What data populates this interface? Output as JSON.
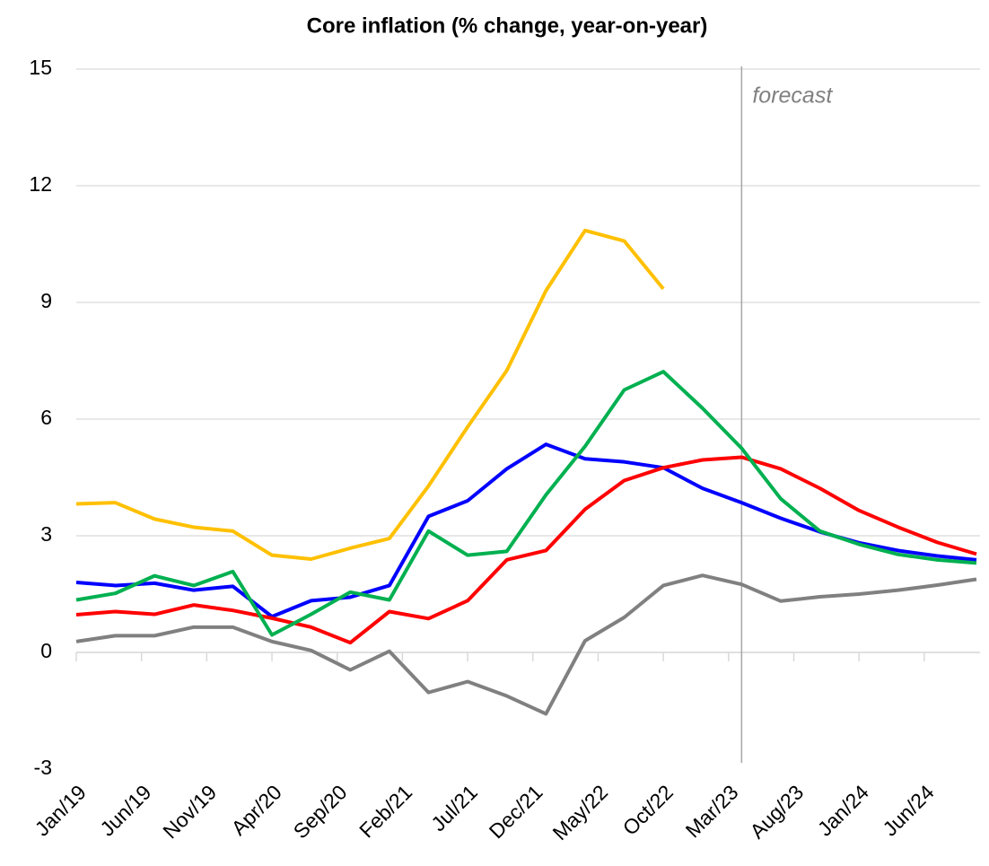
{
  "chart_data": {
    "type": "line",
    "title": "Core inflation (% change, year-on-year)",
    "x": [
      "Jan/19",
      "Apr/19",
      "Jul/19",
      "Oct/19",
      "Jan/20",
      "Apr/20",
      "Jul/20",
      "Oct/20",
      "Jan/21",
      "Apr/21",
      "Jul/21",
      "Oct/21",
      "Jan/22",
      "Apr/22",
      "Jul/22",
      "Oct/22",
      "Jan/23",
      "Apr/23",
      "Jul/23",
      "Oct/23",
      "Jan/24",
      "Apr/24",
      "Jul/24",
      "Oct/24"
    ],
    "xlim": [
      "Jan/19",
      "Oct/24"
    ],
    "xticks": [
      "Jan/19",
      "Jun/19",
      "Nov/19",
      "Apr/20",
      "Sep/20",
      "Feb/21",
      "Jul/21",
      "Dec/21",
      "May/22",
      "Oct/22",
      "Mar/23",
      "Aug/23",
      "Jan/24",
      "Jun/24"
    ],
    "ylim": [
      -3,
      15
    ],
    "yticks": [
      15,
      12,
      9,
      6,
      3,
      0,
      -3
    ],
    "grid": true,
    "annotation": {
      "text": "forecast",
      "x": "Apr/23"
    },
    "series": [
      {
        "color": "#ffc000",
        "values": [
          3.82,
          3.85,
          3.43,
          3.22,
          3.12,
          2.5,
          2.4,
          2.68,
          2.93,
          4.28,
          5.8,
          7.25,
          9.3,
          10.85,
          10.58,
          9.35,
          null,
          null,
          null,
          null,
          null,
          null,
          null,
          null
        ]
      },
      {
        "color": "#0000ff",
        "values": [
          1.8,
          1.72,
          1.78,
          1.6,
          1.7,
          0.92,
          1.33,
          1.42,
          1.72,
          3.5,
          3.9,
          4.72,
          5.35,
          4.98,
          4.9,
          4.75,
          4.22,
          3.85,
          3.45,
          3.1,
          2.82,
          2.62,
          2.48,
          2.38
        ]
      },
      {
        "color": "#ff0000",
        "values": [
          0.97,
          1.05,
          0.98,
          1.22,
          1.08,
          0.88,
          0.65,
          0.25,
          1.05,
          0.87,
          1.33,
          2.38,
          2.62,
          3.68,
          4.42,
          4.75,
          4.95,
          5.02,
          4.72,
          4.22,
          3.65,
          3.22,
          2.83,
          2.53
        ]
      },
      {
        "color": "#00b050",
        "values": [
          1.35,
          1.52,
          1.97,
          1.72,
          2.08,
          0.45,
          0.98,
          1.55,
          1.35,
          3.12,
          2.5,
          2.6,
          4.05,
          5.3,
          6.75,
          7.22,
          6.28,
          5.25,
          3.95,
          3.12,
          2.78,
          2.52,
          2.38,
          2.3
        ]
      },
      {
        "color": "#808080",
        "values": [
          0.28,
          0.43,
          0.43,
          0.65,
          0.65,
          0.28,
          0.05,
          -0.45,
          0.03,
          -1.03,
          -0.75,
          -1.12,
          -1.58,
          0.3,
          0.9,
          1.72,
          1.98,
          1.75,
          1.32,
          1.43,
          1.5,
          1.6,
          1.73,
          1.88
        ]
      }
    ]
  }
}
